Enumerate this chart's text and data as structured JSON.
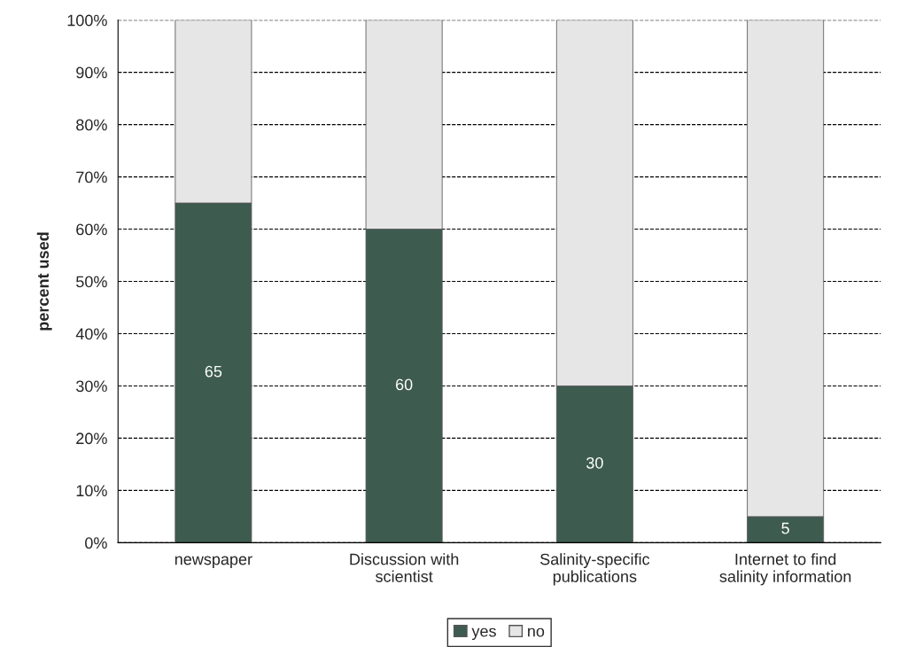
{
  "chart_data": {
    "type": "bar",
    "stacked": true,
    "ylabel": "percent used",
    "categories": [
      "newspaper",
      "Discussion with\nscientist",
      "Salinity-specific\npublications",
      "Internet to find\nsalinity information"
    ],
    "series": [
      {
        "name": "yes",
        "color": "#3e5b50",
        "values": [
          65,
          60,
          30,
          5
        ],
        "value_labels": [
          "65",
          "60",
          "30",
          "5"
        ]
      },
      {
        "name": "no",
        "color": "#e6e6e6",
        "values": [
          35,
          40,
          70,
          95
        ]
      }
    ],
    "ylim": [
      0,
      100
    ],
    "yticks": [
      {
        "value": 0,
        "label": "0%"
      },
      {
        "value": 10,
        "label": "10%"
      },
      {
        "value": 20,
        "label": "20%"
      },
      {
        "value": 30,
        "label": "30%"
      },
      {
        "value": 40,
        "label": "40%"
      },
      {
        "value": 50,
        "label": "50%"
      },
      {
        "value": 60,
        "label": "60%"
      },
      {
        "value": 70,
        "label": "70%"
      },
      {
        "value": 80,
        "label": "80%"
      },
      {
        "value": 90,
        "label": "90%"
      },
      {
        "value": 100,
        "label": "100%"
      }
    ],
    "grid": "y",
    "line_style": "dashed",
    "legend": "bottom"
  }
}
